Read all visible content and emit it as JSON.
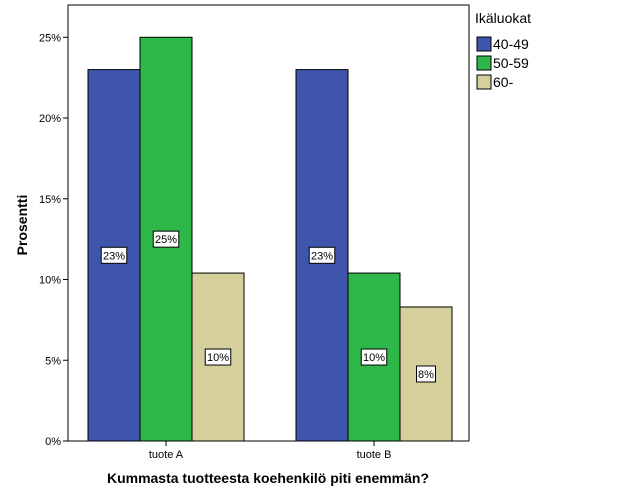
{
  "chart_data": {
    "type": "bar",
    "categories": [
      "tuote A",
      "tuote B"
    ],
    "series": [
      {
        "name": "40-49",
        "values": [
          23,
          23
        ],
        "labels": [
          "23%",
          "23%"
        ],
        "color": "#3f55ad"
      },
      {
        "name": "50-59",
        "values": [
          25,
          10.4
        ],
        "labels": [
          "25%",
          "10%"
        ],
        "color": "#2eb84a"
      },
      {
        "name": "60-",
        "values": [
          10.4,
          8.3
        ],
        "labels": [
          "10%",
          "8%"
        ],
        "color": "#d5cf9c"
      }
    ],
    "xlabel": "Kummasta tuotteesta koehenkilö piti enemmän?",
    "ylabel": "Prosentti",
    "ylim": [
      0,
      27
    ],
    "yticks": [
      {
        "value": 0,
        "label": "0%"
      },
      {
        "value": 5,
        "label": "5%"
      },
      {
        "value": 10,
        "label": "10%"
      },
      {
        "value": 15,
        "label": "15%"
      },
      {
        "value": 20,
        "label": "20%"
      },
      {
        "value": 25,
        "label": "25%"
      }
    ],
    "legend": {
      "title": "Ikäluokat",
      "position": "top-right"
    },
    "grid": false
  }
}
